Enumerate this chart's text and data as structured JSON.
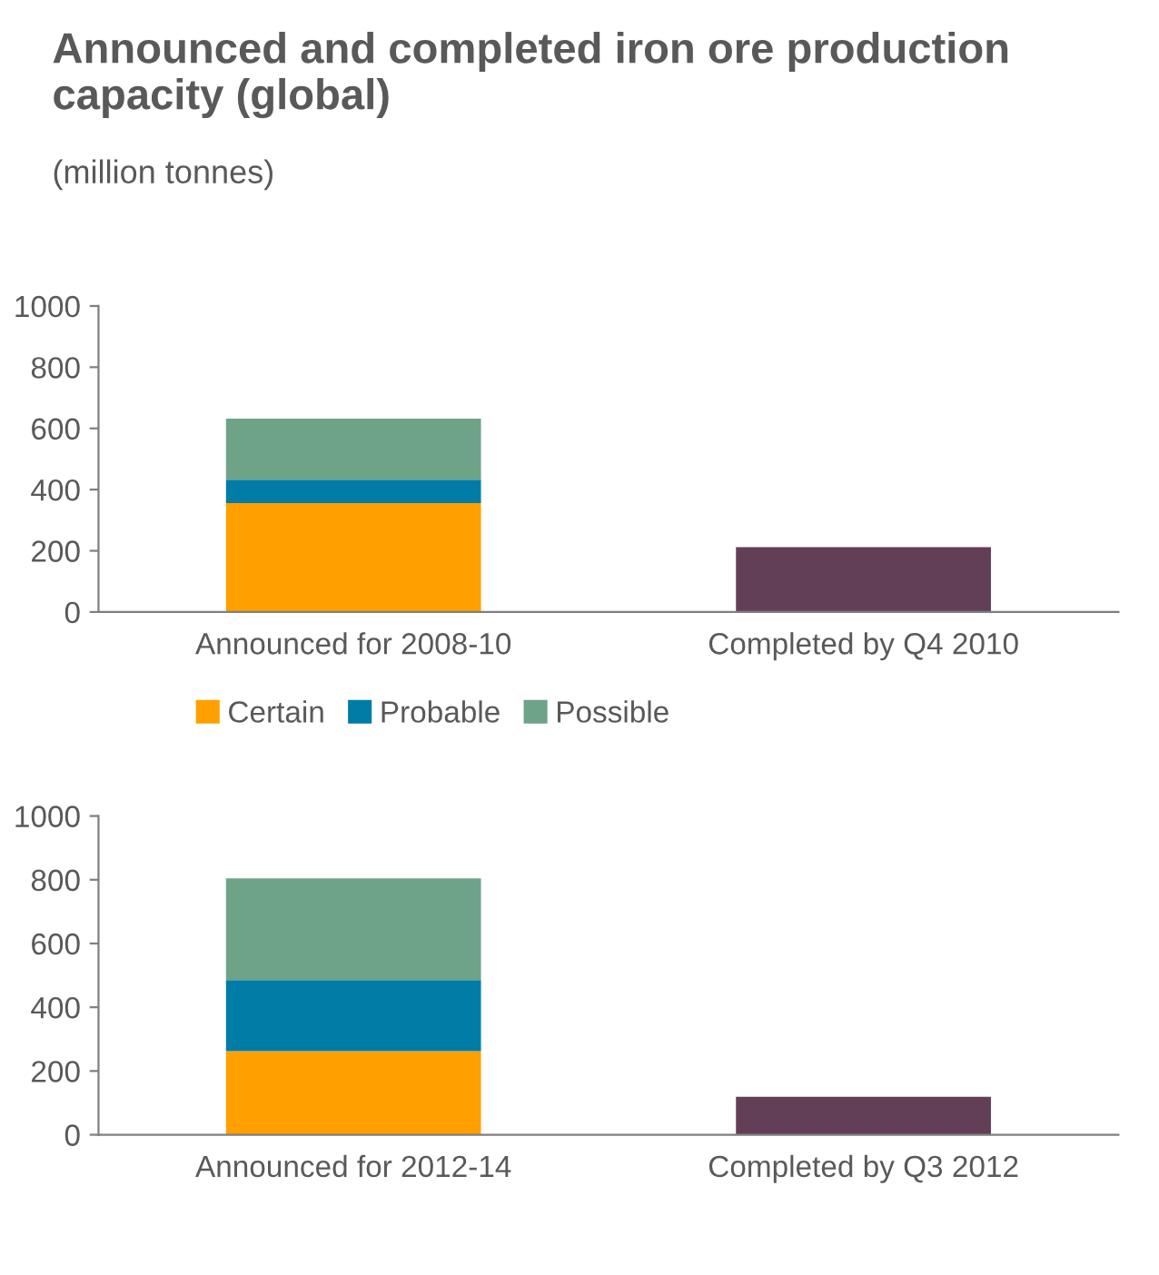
{
  "chart_data": [
    {
      "type": "bar",
      "title": "Announced and completed iron ore production capacity (global)",
      "subtitle": "(million tonnes)",
      "stacked": true,
      "categories": [
        "Announced for 2008-10",
        "Completed by Q4 2010"
      ],
      "series": [
        {
          "name": "Certain",
          "color": "#ffa000",
          "values": [
            356,
            null
          ]
        },
        {
          "name": "Probable",
          "color": "#007ca6",
          "values": [
            76,
            null
          ]
        },
        {
          "name": "Possible",
          "color": "#6fa387",
          "values": [
            200,
            null
          ]
        },
        {
          "color": "#633f57",
          "values": [
            null,
            212
          ]
        }
      ],
      "ylim": [
        0,
        1000
      ],
      "yticks": [
        0,
        200,
        400,
        600,
        800,
        1000
      ],
      "grid": false,
      "legend": "bottom"
    },
    {
      "type": "bar",
      "stacked": true,
      "categories": [
        "Announced for 2012-14",
        "Completed by Q3 2012"
      ],
      "series": [
        {
          "color": "#ffa000",
          "values": [
            262,
            null
          ]
        },
        {
          "color": "#007ca6",
          "values": [
            223,
            null
          ]
        },
        {
          "color": "#6fa387",
          "values": [
            319,
            null
          ]
        },
        {
          "color": "#633f57",
          "values": [
            null,
            119
          ]
        }
      ],
      "ylim": [
        0,
        1000
      ],
      "yticks": [
        0,
        200,
        400,
        600,
        800,
        1000
      ],
      "grid": false,
      "legend": false
    }
  ]
}
